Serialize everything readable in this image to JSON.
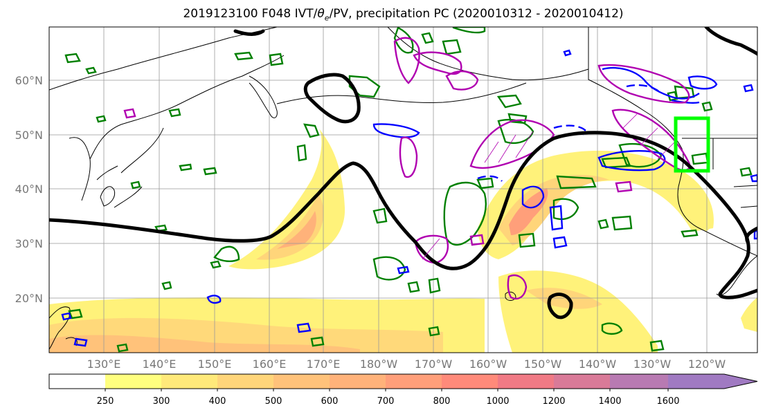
{
  "map": {
    "title": "2019123100 F048 IVT/θe/PV, precipitation PC (2020010312 - 2020010412)",
    "title_parts": {
      "prefix": "2019123100 F048 IVT/",
      "theta": "θ",
      "theta_sub": "e",
      "suffix": "/PV, precipitation PC (2020010312 - 2020010412)"
    },
    "lat_labels": [
      "60°N",
      "50°N",
      "40°N",
      "30°N",
      "20°N"
    ],
    "lon_labels": [
      "130°E",
      "140°E",
      "150°E",
      "160°E",
      "170°E",
      "180°W",
      "170°W",
      "160°W",
      "150°W",
      "140°W",
      "130°W",
      "120°W"
    ],
    "colors": {
      "jet_contour": "#000000",
      "pv_contour": "#b000b0",
      "theta_contour": "#0000ff",
      "precip_contour": "#008000",
      "region_box": "#00ff00",
      "coastline": "#000000",
      "grid": "#999999"
    }
  },
  "colorbar": {
    "ticks": [
      "250",
      "300",
      "400",
      "500",
      "600",
      "700",
      "800",
      "1000",
      "1200",
      "1400",
      "1600"
    ],
    "colors": [
      "#ffffff",
      "#ffff7f",
      "#ffe97a",
      "#ffd57a",
      "#ffc27a",
      "#ffb27a",
      "#ff9f7a",
      "#ff8a7a",
      "#f07a85",
      "#d97a98",
      "#b87ab2",
      "#a07ac2"
    ]
  }
}
